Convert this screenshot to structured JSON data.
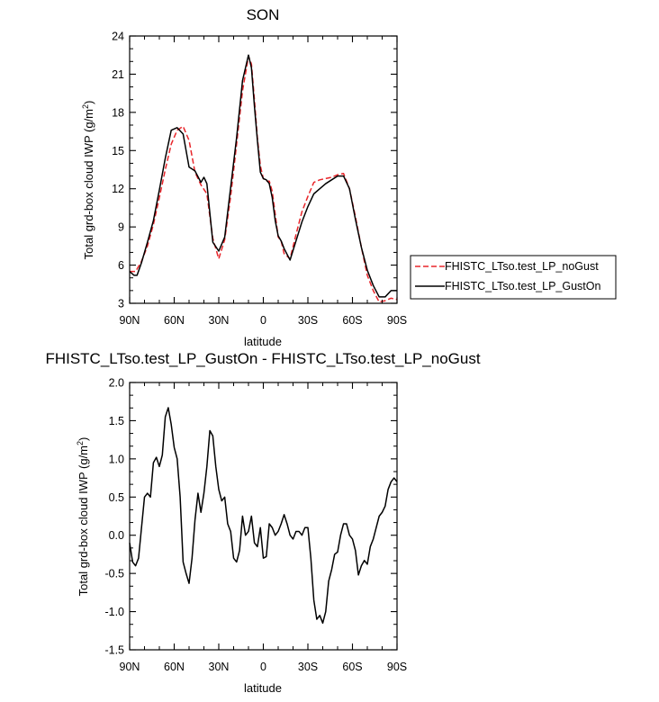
{
  "chart_data": [
    {
      "type": "line",
      "title": "SON",
      "xlabel": "latitude",
      "ylabel": "Total grd-box cloud IWP (g/m",
      "ylabel_sup": "2",
      "ylabel_close": ")",
      "xlim": [
        90,
        -90
      ],
      "ylim": [
        3,
        24
      ],
      "xticks": [
        90,
        60,
        30,
        0,
        -30,
        -60,
        -90
      ],
      "xtick_labels": [
        "90N",
        "60N",
        "30N",
        "0",
        "30S",
        "60S",
        "90S"
      ],
      "yticks": [
        3,
        6,
        9,
        12,
        15,
        18,
        21,
        24
      ],
      "ytick_labels": [
        "3",
        "6",
        "9",
        "12",
        "15",
        "18",
        "21",
        "24"
      ],
      "legend_position": "right",
      "series": [
        {
          "name": "FHISTC_LTso.test_LP_noGust",
          "color": "#e8262b",
          "dash": "dashed",
          "x": [
            90,
            86,
            82,
            78,
            74,
            70,
            66,
            62,
            58,
            54,
            50,
            46,
            42,
            38,
            34,
            30,
            26,
            22,
            18,
            14,
            10,
            8,
            6,
            4,
            2,
            0,
            -2,
            -4,
            -6,
            -8,
            -10,
            -12,
            -14,
            -18,
            -22,
            -26,
            -30,
            -34,
            -38,
            -42,
            -46,
            -50,
            -54,
            -58,
            -62,
            -66,
            -70,
            -74,
            -78,
            -82,
            -86,
            -90
          ],
          "y": [
            5.5,
            5.5,
            6.3,
            7.5,
            9.2,
            11.3,
            13.5,
            15.5,
            16.6,
            16.9,
            15.8,
            13.3,
            12.3,
            11.6,
            8.1,
            6.5,
            8.0,
            11.4,
            15.5,
            19.7,
            22.4,
            21.8,
            19.0,
            16.0,
            13.8,
            12.8,
            12.6,
            12.6,
            11.8,
            10.0,
            8.2,
            7.9,
            6.9,
            6.5,
            8.4,
            10.2,
            11.4,
            12.5,
            12.7,
            12.8,
            12.9,
            13.1,
            13.2,
            12.0,
            9.8,
            7.4,
            5.2,
            4.0,
            3.1,
            3.2,
            3.4,
            3.3
          ]
        },
        {
          "name": "FHISTC_LTso.test_LP_GustOn",
          "color": "#000000",
          "dash": "solid",
          "x": [
            90,
            87,
            85,
            82,
            78,
            74,
            70,
            66,
            62,
            58,
            54,
            50,
            46,
            42,
            40,
            38,
            34,
            30,
            26,
            22,
            18,
            14,
            10,
            8,
            6,
            4,
            2,
            0,
            -2,
            -4,
            -6,
            -8,
            -10,
            -12,
            -14,
            -18,
            -22,
            -26,
            -30,
            -34,
            -38,
            -42,
            -46,
            -50,
            -54,
            -58,
            -62,
            -66,
            -70,
            -74,
            -78,
            -82,
            -86,
            -90
          ],
          "y": [
            5.5,
            5.2,
            5.2,
            6.2,
            7.8,
            9.5,
            11.9,
            14.4,
            16.6,
            16.8,
            16.3,
            13.7,
            13.4,
            12.5,
            12.9,
            12.4,
            7.8,
            7.1,
            8.2,
            12.1,
            16.0,
            20.5,
            22.5,
            21.5,
            18.5,
            15.8,
            13.3,
            12.8,
            12.7,
            12.4,
            11.3,
            9.5,
            8.3,
            7.9,
            7.3,
            6.4,
            7.9,
            9.4,
            10.6,
            11.6,
            12.0,
            12.4,
            12.7,
            13.0,
            13.0,
            12.0,
            9.6,
            7.4,
            5.6,
            4.4,
            3.5,
            3.5,
            4.0,
            4.0
          ]
        }
      ]
    },
    {
      "type": "line",
      "title": "FHISTC_LTso.test_LP_GustOn - FHISTC_LTso.test_LP_noGust",
      "xlabel": "latitude",
      "ylabel": "Total grd-box cloud IWP (g/m",
      "ylabel_sup": "2",
      "ylabel_close": ")",
      "xlim": [
        90,
        -90
      ],
      "ylim": [
        -1.5,
        2.0
      ],
      "xticks": [
        90,
        60,
        30,
        0,
        -30,
        -60,
        -90
      ],
      "xtick_labels": [
        "90N",
        "60N",
        "30N",
        "0",
        "30S",
        "60S",
        "90S"
      ],
      "yticks": [
        -1.5,
        -1.0,
        -0.5,
        0.0,
        0.5,
        1.0,
        1.5,
        2.0
      ],
      "ytick_labels": [
        "-1.5",
        "-1.0",
        "-0.5",
        "0.0",
        "0.5",
        "1.0",
        "1.5",
        "2.0"
      ],
      "series": [
        {
          "color": "#000000",
          "dash": "solid",
          "x": [
            90,
            88,
            86,
            84,
            82,
            80,
            78,
            76,
            74,
            72,
            70,
            68,
            66,
            64,
            62,
            60,
            58,
            56,
            54,
            52,
            50,
            48,
            46,
            44,
            42,
            40,
            38,
            36,
            34,
            32,
            30,
            28,
            26,
            24,
            22,
            20,
            18,
            16,
            14,
            12,
            10,
            8,
            6,
            4,
            2,
            0,
            -2,
            -4,
            -6,
            -8,
            -10,
            -12,
            -14,
            -16,
            -18,
            -20,
            -22,
            -24,
            -26,
            -28,
            -30,
            -32,
            -34,
            -36,
            -38,
            -40,
            -42,
            -44,
            -46,
            -48,
            -50,
            -52,
            -54,
            -56,
            -58,
            -60,
            -62,
            -64,
            -66,
            -68,
            -70,
            -72,
            -74,
            -76,
            -78,
            -80,
            -82,
            -84,
            -86,
            -88,
            -90
          ],
          "y": [
            -0.1,
            -0.35,
            -0.4,
            -0.3,
            0.1,
            0.5,
            0.55,
            0.5,
            0.95,
            1.02,
            0.9,
            1.05,
            1.55,
            1.67,
            1.45,
            1.15,
            1.0,
            0.5,
            -0.35,
            -0.5,
            -0.63,
            -0.3,
            0.2,
            0.55,
            0.3,
            0.55,
            0.9,
            1.37,
            1.3,
            0.9,
            0.6,
            0.45,
            0.5,
            0.15,
            0.05,
            -0.3,
            -0.35,
            -0.2,
            0.25,
            0.0,
            0.05,
            0.25,
            -0.1,
            -0.15,
            0.1,
            -0.3,
            -0.28,
            0.15,
            0.1,
            0.0,
            0.05,
            0.15,
            0.27,
            0.15,
            0.0,
            -0.05,
            0.05,
            0.05,
            0.0,
            0.1,
            0.1,
            -0.3,
            -0.85,
            -1.1,
            -1.05,
            -1.15,
            -1.0,
            -0.6,
            -0.45,
            -0.25,
            -0.22,
            0.0,
            0.15,
            0.15,
            0.0,
            -0.05,
            -0.2,
            -0.52,
            -0.4,
            -0.33,
            -0.38,
            -0.15,
            -0.05,
            0.1,
            0.25,
            0.3,
            0.38,
            0.6,
            0.7,
            0.75,
            0.7
          ]
        }
      ]
    }
  ]
}
